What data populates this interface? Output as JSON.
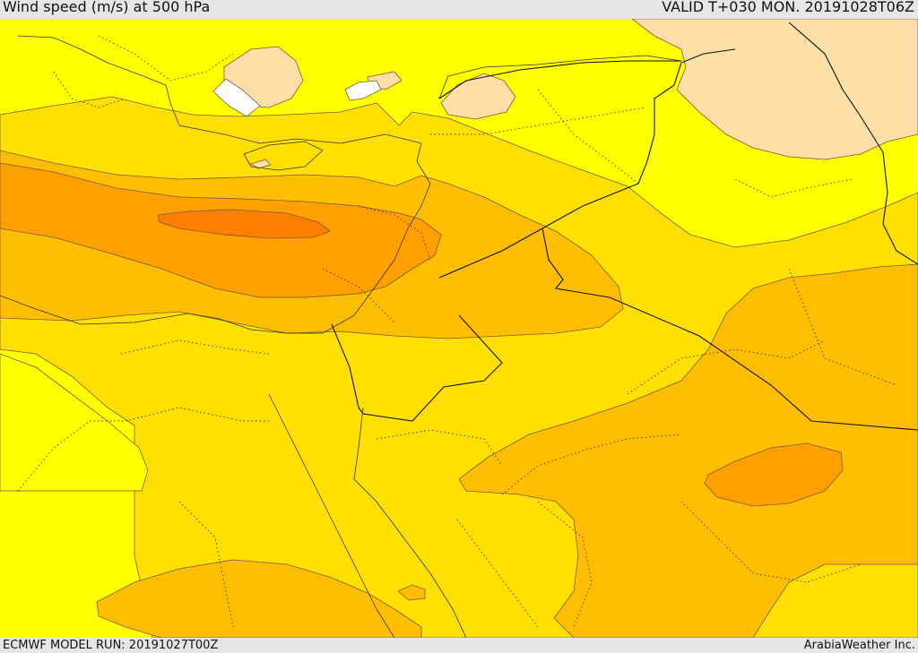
{
  "header": {
    "title": "Wind speed (m/s) at 500 hPa",
    "valid": "VALID T+030 MON. 20191028T06Z"
  },
  "footer": {
    "model_run": "ECMWF MODEL RUN: 20191027T00Z",
    "credit": "ArabiaWeather Inc."
  },
  "map": {
    "colors": {
      "background_band": "#ffff00",
      "band_2": "#ffe000",
      "band_3": "#ffbf00",
      "band_4": "#ff9f00",
      "band_5": "#ff7f00",
      "calm": "#ffdfa8",
      "calmest": "#ffffff"
    }
  }
}
